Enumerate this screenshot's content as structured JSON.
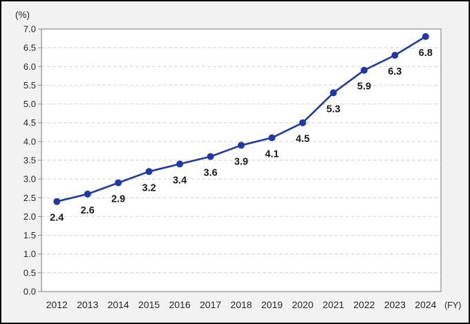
{
  "frame": {
    "background": "#f2f2f2",
    "border_color": "#000000"
  },
  "chart_data": {
    "type": "line",
    "unit_label": "(%)",
    "x_axis_suffix_label": "(FY)",
    "categories": [
      "2012",
      "2013",
      "2014",
      "2015",
      "2016",
      "2017",
      "2018",
      "2019",
      "2020",
      "2021",
      "2022",
      "2023",
      "2024"
    ],
    "series": [
      {
        "name": "",
        "values": [
          2.4,
          2.6,
          2.9,
          3.2,
          3.4,
          3.6,
          3.9,
          4.1,
          4.5,
          5.3,
          5.9,
          6.3,
          6.8
        ]
      }
    ],
    "ylim": [
      0.0,
      7.0
    ],
    "ytick_step": 0.5,
    "y_tick_labels": [
      "0.0",
      "0.5",
      "1.0",
      "1.5",
      "2.0",
      "2.5",
      "3.0",
      "3.5",
      "4.0",
      "4.5",
      "5.0",
      "5.5",
      "6.0",
      "6.5",
      "7.0"
    ],
    "grid": {
      "horizontal": true,
      "vertical": false,
      "style": "dashed"
    },
    "legend": "none",
    "data_labels": true,
    "colors": {
      "line": "#1f3aa6",
      "marker": "#1f3aa6",
      "plot_background": "#ffffff",
      "plot_border": "#8c8c8c",
      "gridline": "#dadada",
      "tick": "#8c8c8c",
      "axis_text": "#262626",
      "data_label_text": "#1a1a1a"
    }
  }
}
